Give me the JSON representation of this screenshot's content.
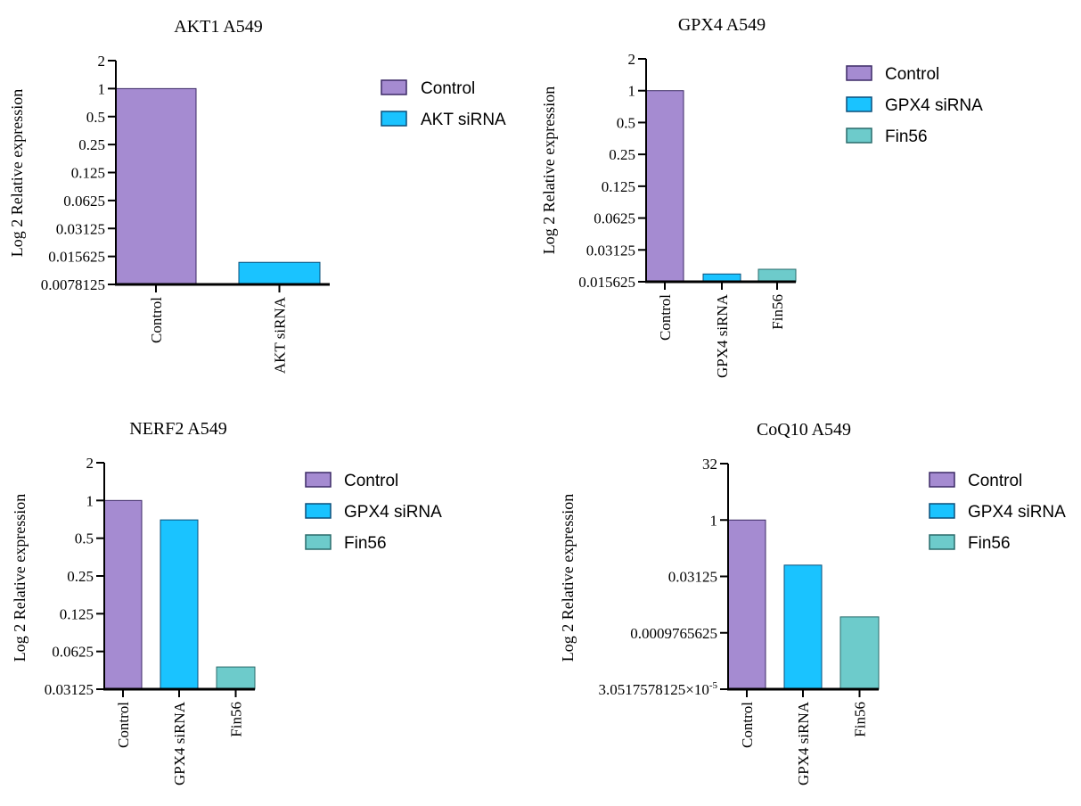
{
  "figure": {
    "colors": {
      "control_fill": "#a58bd1",
      "control_stroke": "#3c2a66",
      "siRNA_fill": "#1ac3ff",
      "siRNA_stroke": "#0b4f7a",
      "fin56_fill": "#6dcbcb",
      "fin56_stroke": "#2a6b6b",
      "axis": "#000000"
    },
    "icons": {
      "legend_swatch": "legend-swatch-icon"
    }
  },
  "chart_data": [
    {
      "id": "akt1",
      "type": "bar",
      "title": "AKT1 A549",
      "ylabel": "Log 2 Relative expression",
      "xlabel": "",
      "yscale": "log2",
      "ylim": [
        0.0078125,
        2
      ],
      "yticks": [
        0.0078125,
        0.015625,
        0.03125,
        0.0625,
        0.125,
        0.25,
        0.5,
        1,
        2
      ],
      "yticklabels": [
        "0.0078125",
        "0.015625",
        "0.03125",
        "0.0625",
        "0.125",
        "0.25",
        "0.5",
        "1",
        "2"
      ],
      "categories": [
        "Control",
        "AKT siRNA"
      ],
      "values": [
        1,
        0.0135
      ],
      "series_keys": [
        "control",
        "siRNA"
      ],
      "legend": [
        "Control",
        "AKT siRNA"
      ],
      "legend_position": "right"
    },
    {
      "id": "gpx4",
      "type": "bar",
      "title": "GPX4 A549",
      "ylabel": "Log 2 Relative expression",
      "xlabel": "",
      "yscale": "log2",
      "ylim": [
        0.015625,
        2
      ],
      "yticks": [
        0.015625,
        0.03125,
        0.0625,
        0.125,
        0.25,
        0.5,
        1,
        2
      ],
      "yticklabels": [
        "0.015625",
        "0.03125",
        "0.0625",
        "0.125",
        "0.25",
        "0.5",
        "1",
        "2"
      ],
      "categories": [
        "Control",
        "GPX4 siRNA",
        "Fin56"
      ],
      "values": [
        1,
        0.0185,
        0.0205
      ],
      "series_keys": [
        "control",
        "siRNA",
        "fin56"
      ],
      "legend": [
        "Control",
        "GPX4 siRNA",
        "Fin56"
      ],
      "legend_position": "right"
    },
    {
      "id": "nerf2",
      "type": "bar",
      "title": "NERF2 A549",
      "ylabel": "Log 2 Relative expression",
      "xlabel": "",
      "yscale": "log2",
      "ylim": [
        0.03125,
        2
      ],
      "yticks": [
        0.03125,
        0.0625,
        0.125,
        0.25,
        0.5,
        1,
        2
      ],
      "yticklabels": [
        "0.03125",
        "0.0625",
        "0.125",
        "0.25",
        "0.5",
        "1",
        "2"
      ],
      "categories": [
        "Control",
        "GPX4 siRNA",
        "Fin56"
      ],
      "values": [
        1,
        0.7,
        0.047
      ],
      "series_keys": [
        "control",
        "siRNA",
        "fin56"
      ],
      "legend": [
        "Control",
        "GPX4 siRNA",
        "Fin56"
      ],
      "legend_position": "right"
    },
    {
      "id": "coq10",
      "type": "bar",
      "title": "CoQ10 A549",
      "ylabel": "Log 2 Relative expression",
      "xlabel": "",
      "yscale": "log2",
      "ylim": [
        3.0517578125e-05,
        32
      ],
      "yticks": [
        3.0517578125e-05,
        0.0009765625,
        0.03125,
        1,
        32
      ],
      "yticklabels": [
        "3.0517578125×10",
        "0.0009765625",
        "0.03125",
        "1",
        "32"
      ],
      "ytick_superscript": "-5",
      "categories": [
        "Control",
        "GPX4 siRNA",
        "Fin56"
      ],
      "values": [
        1,
        0.0625,
        0.0026
      ],
      "series_keys": [
        "control",
        "siRNA",
        "fin56"
      ],
      "legend": [
        "Control",
        "GPX4 siRNA",
        "Fin56"
      ],
      "legend_position": "right"
    }
  ]
}
